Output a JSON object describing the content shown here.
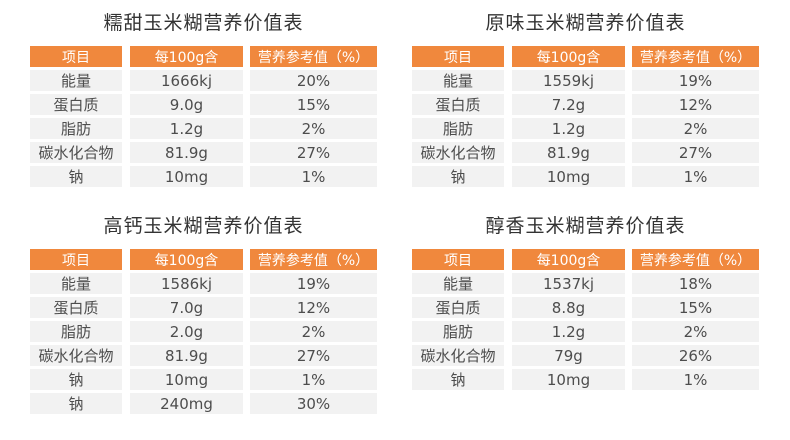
{
  "colors": {
    "page_bg": "#FFFFFF",
    "header_bg": "#F0883D",
    "header_text": "#FFFFFF",
    "row_bg": "#F2F2F2",
    "body_text": "#4D4D4D",
    "title_text": "#333333"
  },
  "chart_data": [
    {
      "type": "table",
      "title": "糯甜玉米糊营养价值表",
      "columns": [
        "项目",
        "每100g含",
        "营养参考值（%）"
      ],
      "rows": [
        [
          "能量",
          "1666kj",
          "20%"
        ],
        [
          "蛋白质",
          "9.0g",
          "15%"
        ],
        [
          "脂肪",
          "1.2g",
          "2%"
        ],
        [
          "碳水化合物",
          "81.9g",
          "27%"
        ],
        [
          "钠",
          "10mg",
          "1%"
        ]
      ]
    },
    {
      "type": "table",
      "title": "原味玉米糊营养价值表",
      "columns": [
        "项目",
        "每100g含",
        "营养参考值（%）"
      ],
      "rows": [
        [
          "能量",
          "1559kj",
          "19%"
        ],
        [
          "蛋白质",
          "7.2g",
          "12%"
        ],
        [
          "脂肪",
          "1.2g",
          "2%"
        ],
        [
          "碳水化合物",
          "81.9g",
          "27%"
        ],
        [
          "钠",
          "10mg",
          "1%"
        ]
      ]
    },
    {
      "type": "table",
      "title": "高钙玉米糊营养价值表",
      "columns": [
        "项目",
        "每100g含",
        "营养参考值（%）"
      ],
      "rows": [
        [
          "能量",
          "1586kj",
          "19%"
        ],
        [
          "蛋白质",
          "7.0g",
          "12%"
        ],
        [
          "脂肪",
          "2.0g",
          "2%"
        ],
        [
          "碳水化合物",
          "81.9g",
          "27%"
        ],
        [
          "钠",
          "10mg",
          "1%"
        ],
        [
          "钠",
          "240mg",
          "30%"
        ]
      ]
    },
    {
      "type": "table",
      "title": "醇香玉米糊营养价值表",
      "columns": [
        "项目",
        "每100g含",
        "营养参考值（%）"
      ],
      "rows": [
        [
          "能量",
          "1537kj",
          "18%"
        ],
        [
          "蛋白质",
          "8.8g",
          "15%"
        ],
        [
          "脂肪",
          "1.2g",
          "2%"
        ],
        [
          "碳水化合物",
          "79g",
          "26%"
        ],
        [
          "钠",
          "10mg",
          "1%"
        ]
      ]
    }
  ]
}
